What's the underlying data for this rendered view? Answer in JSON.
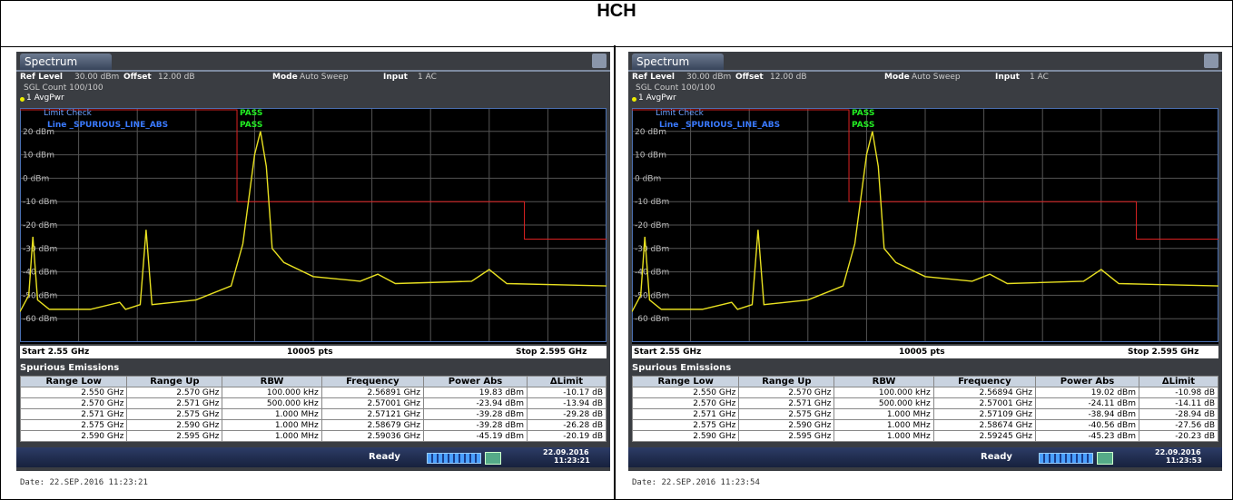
{
  "title": "HCH",
  "panels": [
    {
      "tab": "Spectrum",
      "ref_level_label": "Ref Level",
      "ref_level": "30.00 dBm",
      "offset_label": "Offset",
      "offset": "12.00 dB",
      "mode_label": "Mode",
      "mode": "Auto Sweep",
      "input_label": "Input",
      "input": "1 AC",
      "sgl_count": "SGL Count 100/100",
      "trace": "1 AvgPwr",
      "limit_check": "Limit Check",
      "limit_check_result": "PASS",
      "line": "Line _SPURIOUS_LINE_ABS",
      "line_result": "PASS",
      "y_labels": [
        "20 dBm",
        "10 dBm",
        "0 dBm",
        "-10 dBm",
        "-20 dBm",
        "-30 dBm",
        "-40 dBm",
        "-50 dBm",
        "-60 dBm"
      ],
      "start": "Start 2.55 GHz",
      "pts": "10005 pts",
      "stop": "Stop 2.595 GHz",
      "table_title": "Spurious Emissions",
      "columns": [
        "Range Low",
        "Range Up",
        "RBW",
        "Frequency",
        "Power Abs",
        "ΔLimit"
      ],
      "rows": [
        [
          "2.550 GHz",
          "2.570 GHz",
          "100.000 kHz",
          "2.56891 GHz",
          "19.83 dBm",
          "-10.17 dB"
        ],
        [
          "2.570 GHz",
          "2.571 GHz",
          "500.000 kHz",
          "2.57001 GHz",
          "-23.94 dBm",
          "-13.94 dB"
        ],
        [
          "2.571 GHz",
          "2.575 GHz",
          "1.000 MHz",
          "2.57121 GHz",
          "-39.28 dBm",
          "-29.28 dB"
        ],
        [
          "2.575 GHz",
          "2.590 GHz",
          "1.000 MHz",
          "2.58679 GHz",
          "-39.28 dBm",
          "-26.28 dB"
        ],
        [
          "2.590 GHz",
          "2.595 GHz",
          "1.000 MHz",
          "2.59036 GHz",
          "-45.19 dBm",
          "-20.19 dB"
        ]
      ],
      "status": "Ready",
      "status_date": "22.09.2016",
      "status_time": "11:23:21",
      "date_line": "Date: 22.SEP.2016  11:23:21"
    },
    {
      "tab": "Spectrum",
      "ref_level_label": "Ref Level",
      "ref_level": "30.00 dBm",
      "offset_label": "Offset",
      "offset": "12.00 dB",
      "mode_label": "Mode",
      "mode": "Auto Sweep",
      "input_label": "Input",
      "input": "1 AC",
      "sgl_count": "SGL Count 100/100",
      "trace": "1 AvgPwr",
      "limit_check": "Limit Check",
      "limit_check_result": "PASS",
      "line": "Line _SPURIOUS_LINE_ABS",
      "line_result": "PASS",
      "y_labels": [
        "20 dBm",
        "10 dBm",
        "0 dBm",
        "-10 dBm",
        "-20 dBm",
        "-30 dBm",
        "-40 dBm",
        "-50 dBm",
        "-60 dBm"
      ],
      "start": "Start 2.55 GHz",
      "pts": "10005 pts",
      "stop": "Stop 2.595 GHz",
      "table_title": "Spurious Emissions",
      "columns": [
        "Range Low",
        "Range Up",
        "RBW",
        "Frequency",
        "Power Abs",
        "ΔLimit"
      ],
      "rows": [
        [
          "2.550 GHz",
          "2.570 GHz",
          "100.000 kHz",
          "2.56894 GHz",
          "19.02 dBm",
          "-10.98 dB"
        ],
        [
          "2.570 GHz",
          "2.571 GHz",
          "500.000 kHz",
          "2.57001 GHz",
          "-24.11 dBm",
          "-14.11 dB"
        ],
        [
          "2.571 GHz",
          "2.575 GHz",
          "1.000 MHz",
          "2.57109 GHz",
          "-38.94 dBm",
          "-28.94 dB"
        ],
        [
          "2.575 GHz",
          "2.590 GHz",
          "1.000 MHz",
          "2.58674 GHz",
          "-40.56 dBm",
          "-27.56 dB"
        ],
        [
          "2.590 GHz",
          "2.595 GHz",
          "1.000 MHz",
          "2.59245 GHz",
          "-45.23 dBm",
          "-20.23 dB"
        ]
      ],
      "status": "Ready",
      "status_date": "22.09.2016",
      "status_time": "11:23:53",
      "date_line": "Date: 22.SEP.2016  11:23:54"
    }
  ]
}
